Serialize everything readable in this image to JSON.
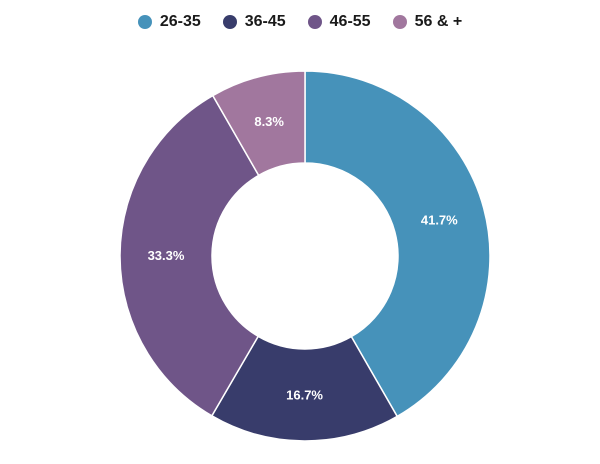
{
  "chart_data": {
    "type": "pie",
    "donut": true,
    "categories": [
      "26-35",
      "36-45",
      "46-55",
      "56 & +"
    ],
    "values": [
      41.7,
      16.7,
      33.3,
      8.3
    ],
    "labels": [
      "41.7%",
      "16.7%",
      "33.3%",
      "8.3%"
    ],
    "colors": [
      "#4692ba",
      "#383c6b",
      "#6f5588",
      "#a1779e"
    ],
    "legend_position": "top"
  }
}
